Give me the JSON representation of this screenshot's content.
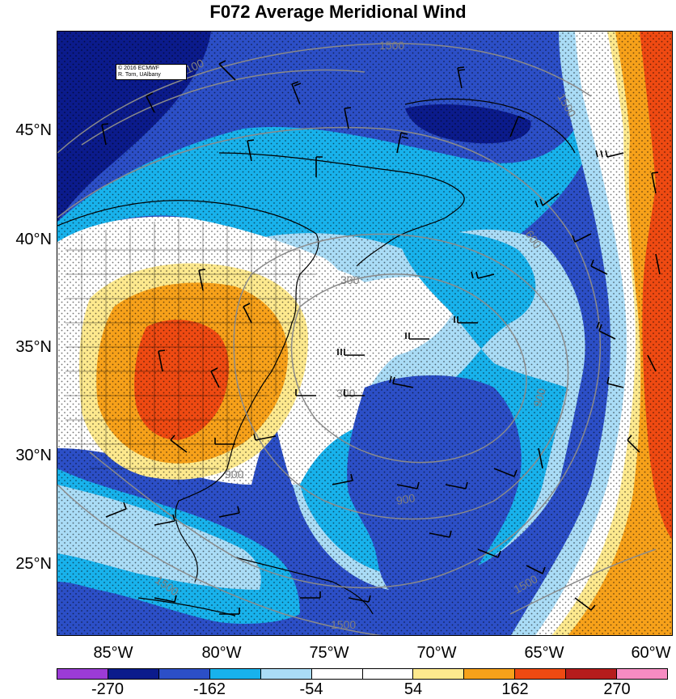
{
  "title": "F072 Average Meridional Wind",
  "credit": {
    "line1": "© 2016 ECMWF",
    "line2": "R. Torn, UAlbany"
  },
  "lat_labels": [
    "45°N",
    "40°N",
    "35°N",
    "30°N",
    "25°N"
  ],
  "lon_labels": [
    "85°W",
    "80°W",
    "75°W",
    "70°W",
    "65°W",
    "60°W"
  ],
  "contour_labels": [
    "1500",
    "1100",
    "1500",
    "300",
    "600",
    "300",
    "900",
    "900",
    "900",
    "1500",
    "1500",
    "1500",
    "900"
  ],
  "colorbar": {
    "colors": [
      "#9b3bd6",
      "#0b1b8c",
      "#2c4fc7",
      "#18b2ec",
      "#aadcf6",
      "#ffffff",
      "#ffffff",
      "#fde98e",
      "#f7a11a",
      "#ef4a12",
      "#b51c1c",
      "#f78bc2"
    ],
    "labels": [
      "-270",
      "-162",
      "-54",
      "54",
      "162",
      "270"
    ]
  },
  "shading_colors": {
    "dark_blue": "#0b1b8c",
    "blue": "#2c4fc7",
    "cyan": "#18b2ec",
    "light_blue": "#aadcf6",
    "white": "#ffffff",
    "yellow": "#fde98e",
    "orange": "#f7a11a",
    "red_orange": "#ef4a12"
  }
}
